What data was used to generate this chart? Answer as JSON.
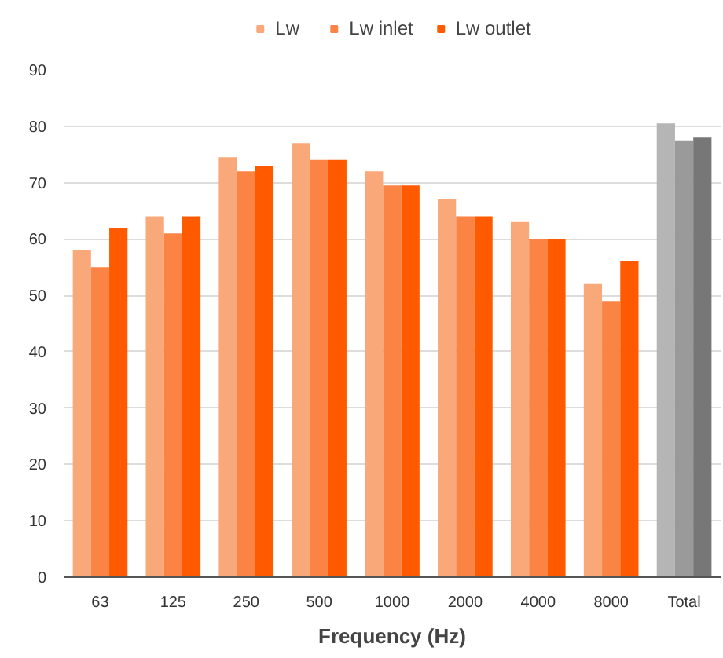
{
  "chart_data": {
    "type": "bar",
    "xlabel": "Frequency (Hz)",
    "categories": [
      "63",
      "125",
      "250",
      "500",
      "1000",
      "2000",
      "4000",
      "8000",
      "Total"
    ],
    "series": [
      {
        "name": "Lw",
        "color": "#f9a87a",
        "colors": [
          "#f9a87a",
          "#f9a87a",
          "#f9a87a",
          "#f9a87a",
          "#f9a87a",
          "#f9a87a",
          "#f9a87a",
          "#f9a87a",
          "#b5b5b5"
        ],
        "values": [
          58,
          64,
          74.5,
          77,
          72,
          67,
          63,
          52,
          80.5
        ]
      },
      {
        "name": "Lw inlet",
        "color": "#fb8444",
        "colors": [
          "#fb8444",
          "#fb8444",
          "#fb8444",
          "#fb8444",
          "#fb8444",
          "#fb8444",
          "#fb8444",
          "#fb8444",
          "#9a9a9a"
        ],
        "values": [
          55,
          61,
          72,
          74,
          69.5,
          64,
          60,
          49,
          77.5
        ]
      },
      {
        "name": "Lw outlet",
        "color": "#ff5a00",
        "colors": [
          "#ff5a00",
          "#ff5a00",
          "#ff5a00",
          "#ff5a00",
          "#ff5a00",
          "#ff5a00",
          "#ff5a00",
          "#ff5a00",
          "#777777"
        ],
        "values": [
          62,
          64,
          73,
          74,
          69.5,
          64,
          60,
          56,
          78
        ]
      }
    ],
    "ylim": [
      0,
      90
    ],
    "yticks": [
      0,
      10,
      20,
      30,
      40,
      50,
      60,
      70,
      80,
      90
    ],
    "grid": "y",
    "legend": "top"
  }
}
